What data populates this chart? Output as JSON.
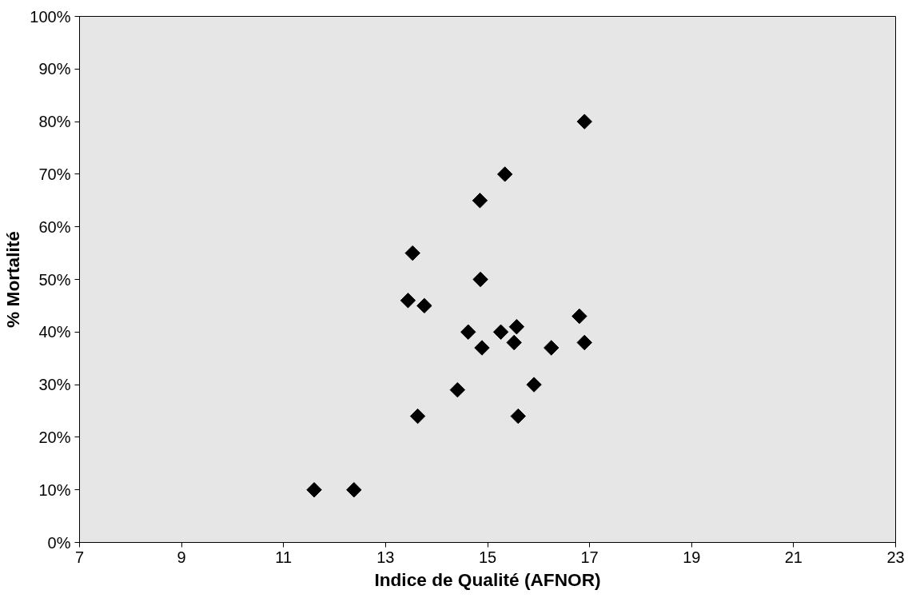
{
  "chart_data": {
    "type": "scatter",
    "xlabel": "Indice de Qualité (AFNOR)",
    "ylabel": "% Mortalité",
    "x": [
      16.9,
      15.34,
      14.85,
      13.53,
      14.86,
      13.44,
      13.76,
      16.8,
      14.62,
      15.26,
      15.57,
      15.52,
      14.89,
      16.25,
      16.9,
      15.91,
      14.41,
      13.63,
      15.6,
      11.6,
      12.38
    ],
    "series": [
      {
        "color": "#000000",
        "values": [
          80,
          70,
          65,
          55,
          50,
          46,
          45,
          43,
          40,
          40,
          41,
          38,
          37,
          37,
          38,
          30,
          29,
          24,
          24,
          10,
          10
        ]
      }
    ],
    "xlim": [
      7,
      23
    ],
    "xticks": [
      7,
      9,
      11,
      13,
      15,
      17,
      19,
      21,
      23
    ],
    "ylim": [
      0,
      100
    ],
    "yticks": [
      {
        "value": 0,
        "label": "0%"
      },
      {
        "value": 10,
        "label": "10%"
      },
      {
        "value": 20,
        "label": "20%"
      },
      {
        "value": 30,
        "label": "30%"
      },
      {
        "value": 40,
        "label": "40%"
      },
      {
        "value": 50,
        "label": "50%"
      },
      {
        "value": 60,
        "label": "60%"
      },
      {
        "value": 70,
        "label": "70%"
      },
      {
        "value": 80,
        "label": "80%"
      },
      {
        "value": 90,
        "label": "90%"
      },
      {
        "value": 100,
        "label": "100%"
      }
    ],
    "grid": false,
    "marker": "diamond"
  }
}
